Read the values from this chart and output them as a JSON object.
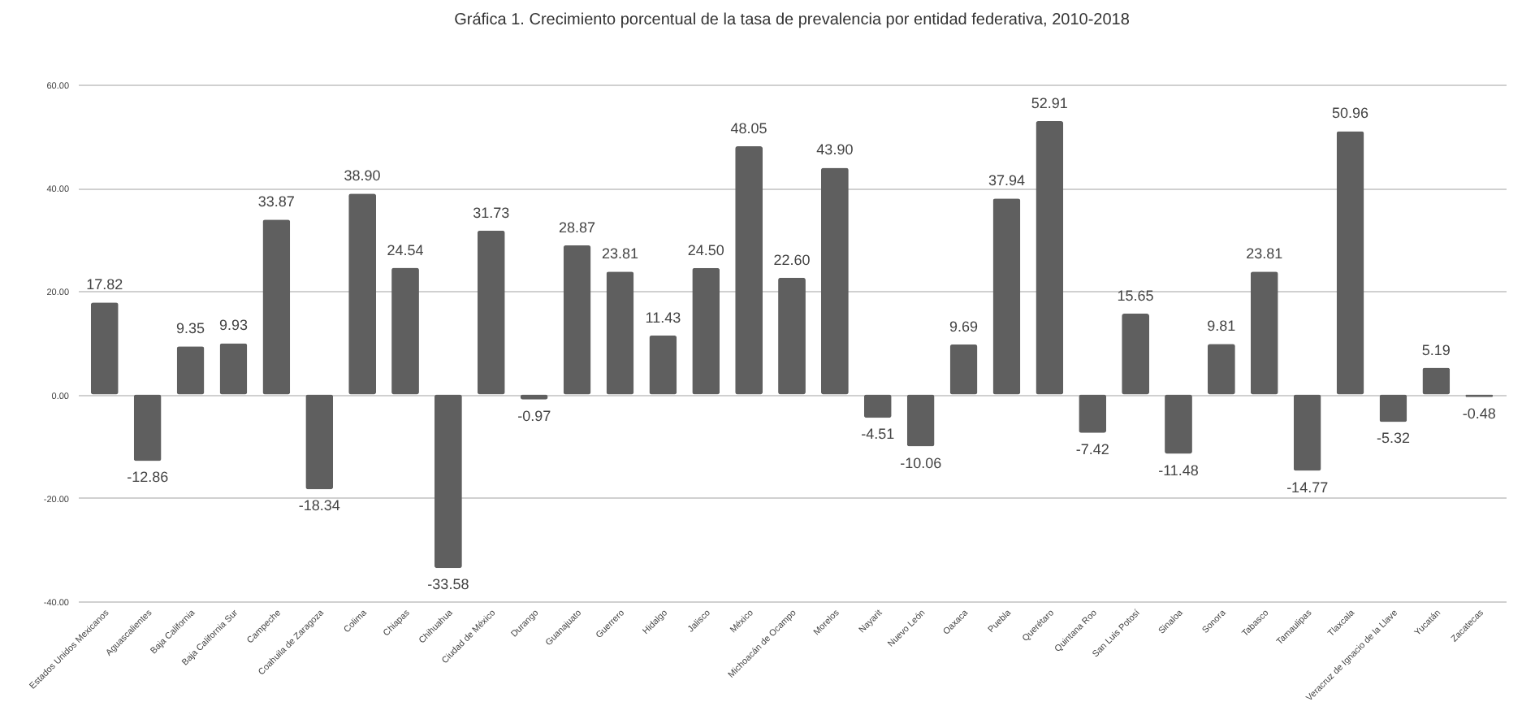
{
  "chart_data": {
    "type": "bar",
    "title": "Gráfica 1. Crecimiento porcentual de la tasa de prevalencia por entidad federativa, 2010-2018",
    "categories": [
      "Estados Unidos Mexicanos",
      "Aguascalientes",
      "Baja California",
      "Baja California Sur",
      "Campeche",
      "Coahuila de Zaragoza",
      "Colima",
      "Chiapas",
      "Chihuahua",
      "Ciudad de México",
      "Durango",
      "Guanajuato",
      "Guerrero",
      "Hidalgo",
      "Jalisco",
      "México",
      "Michoacán de Ocampo",
      "Morelos",
      "Nayarit",
      "Nuevo León",
      "Oaxaca",
      "Puebla",
      "Querétaro",
      "Quintana Roo",
      "San Luis Potosí",
      "Sinaloa",
      "Sonora",
      "Tabasco",
      "Tamaulipas",
      "Tlaxcala",
      "Veracruz de Ignacio de la Llave",
      "Yucatán",
      "Zacatecas"
    ],
    "values": [
      17.82,
      -12.86,
      9.35,
      9.93,
      33.87,
      -18.34,
      38.9,
      24.54,
      -33.58,
      31.73,
      -0.97,
      28.87,
      23.81,
      11.43,
      24.5,
      48.05,
      22.6,
      43.9,
      -4.51,
      -10.06,
      9.69,
      37.94,
      52.91,
      -7.42,
      15.65,
      -11.48,
      9.81,
      23.81,
      -14.77,
      50.96,
      -5.32,
      5.19,
      -0.48
    ],
    "value_labels": [
      "17.82",
      "-12.86",
      "9.35",
      "9.93",
      "33.87",
      "-18.34",
      "38.90",
      "24.54",
      "-33.58",
      "31.73",
      "-0.97",
      "28.87",
      "23.81",
      "11.43",
      "24.50",
      "48.05",
      "22.60",
      "43.90",
      "-4.51",
      "-10.06",
      "9.69",
      "37.94",
      "52.91",
      "-7.42",
      "15.65",
      "-11.48",
      "9.81",
      "23.81",
      "-14.77",
      "50.96",
      "-5.32",
      "5.19",
      "-0.48"
    ],
    "color": "#5f5f5f",
    "ylim": [
      -40,
      60
    ],
    "yticks": [
      {
        "value": -40,
        "label": "-40.00"
      },
      {
        "value": -20,
        "label": "-20.00"
      },
      {
        "value": 0,
        "label": "0.00"
      },
      {
        "value": 20,
        "label": "20.00"
      },
      {
        "value": 40,
        "label": "40.00"
      },
      {
        "value": 60,
        "label": "60.00"
      }
    ],
    "grid": "y"
  }
}
